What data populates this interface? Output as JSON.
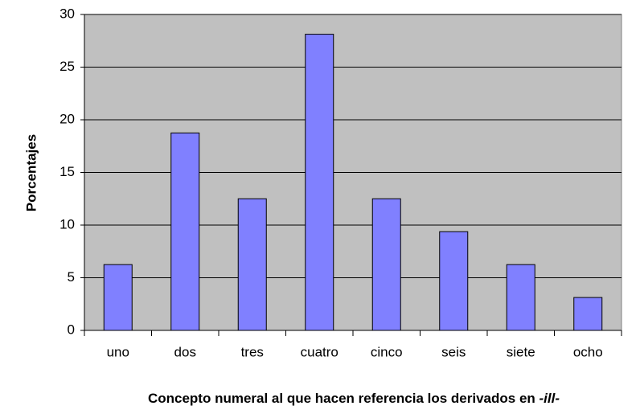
{
  "chart_data": {
    "type": "bar",
    "categories": [
      "uno",
      "dos",
      "tres",
      "cuatro",
      "cinco",
      "seis",
      "siete",
      "ocho"
    ],
    "values": [
      6.25,
      18.75,
      12.5,
      28.125,
      12.5,
      9.375,
      6.25,
      3.125
    ],
    "color": "#8080ff",
    "ylim": [
      0,
      30
    ],
    "yticks": [
      0,
      5,
      10,
      15,
      20,
      25,
      30
    ],
    "grid": true,
    "ylabel": "Porcentajes",
    "xlabel": [
      "Concepto numeral al que hacen referencia los derivados en ",
      "-ill-"
    ]
  }
}
